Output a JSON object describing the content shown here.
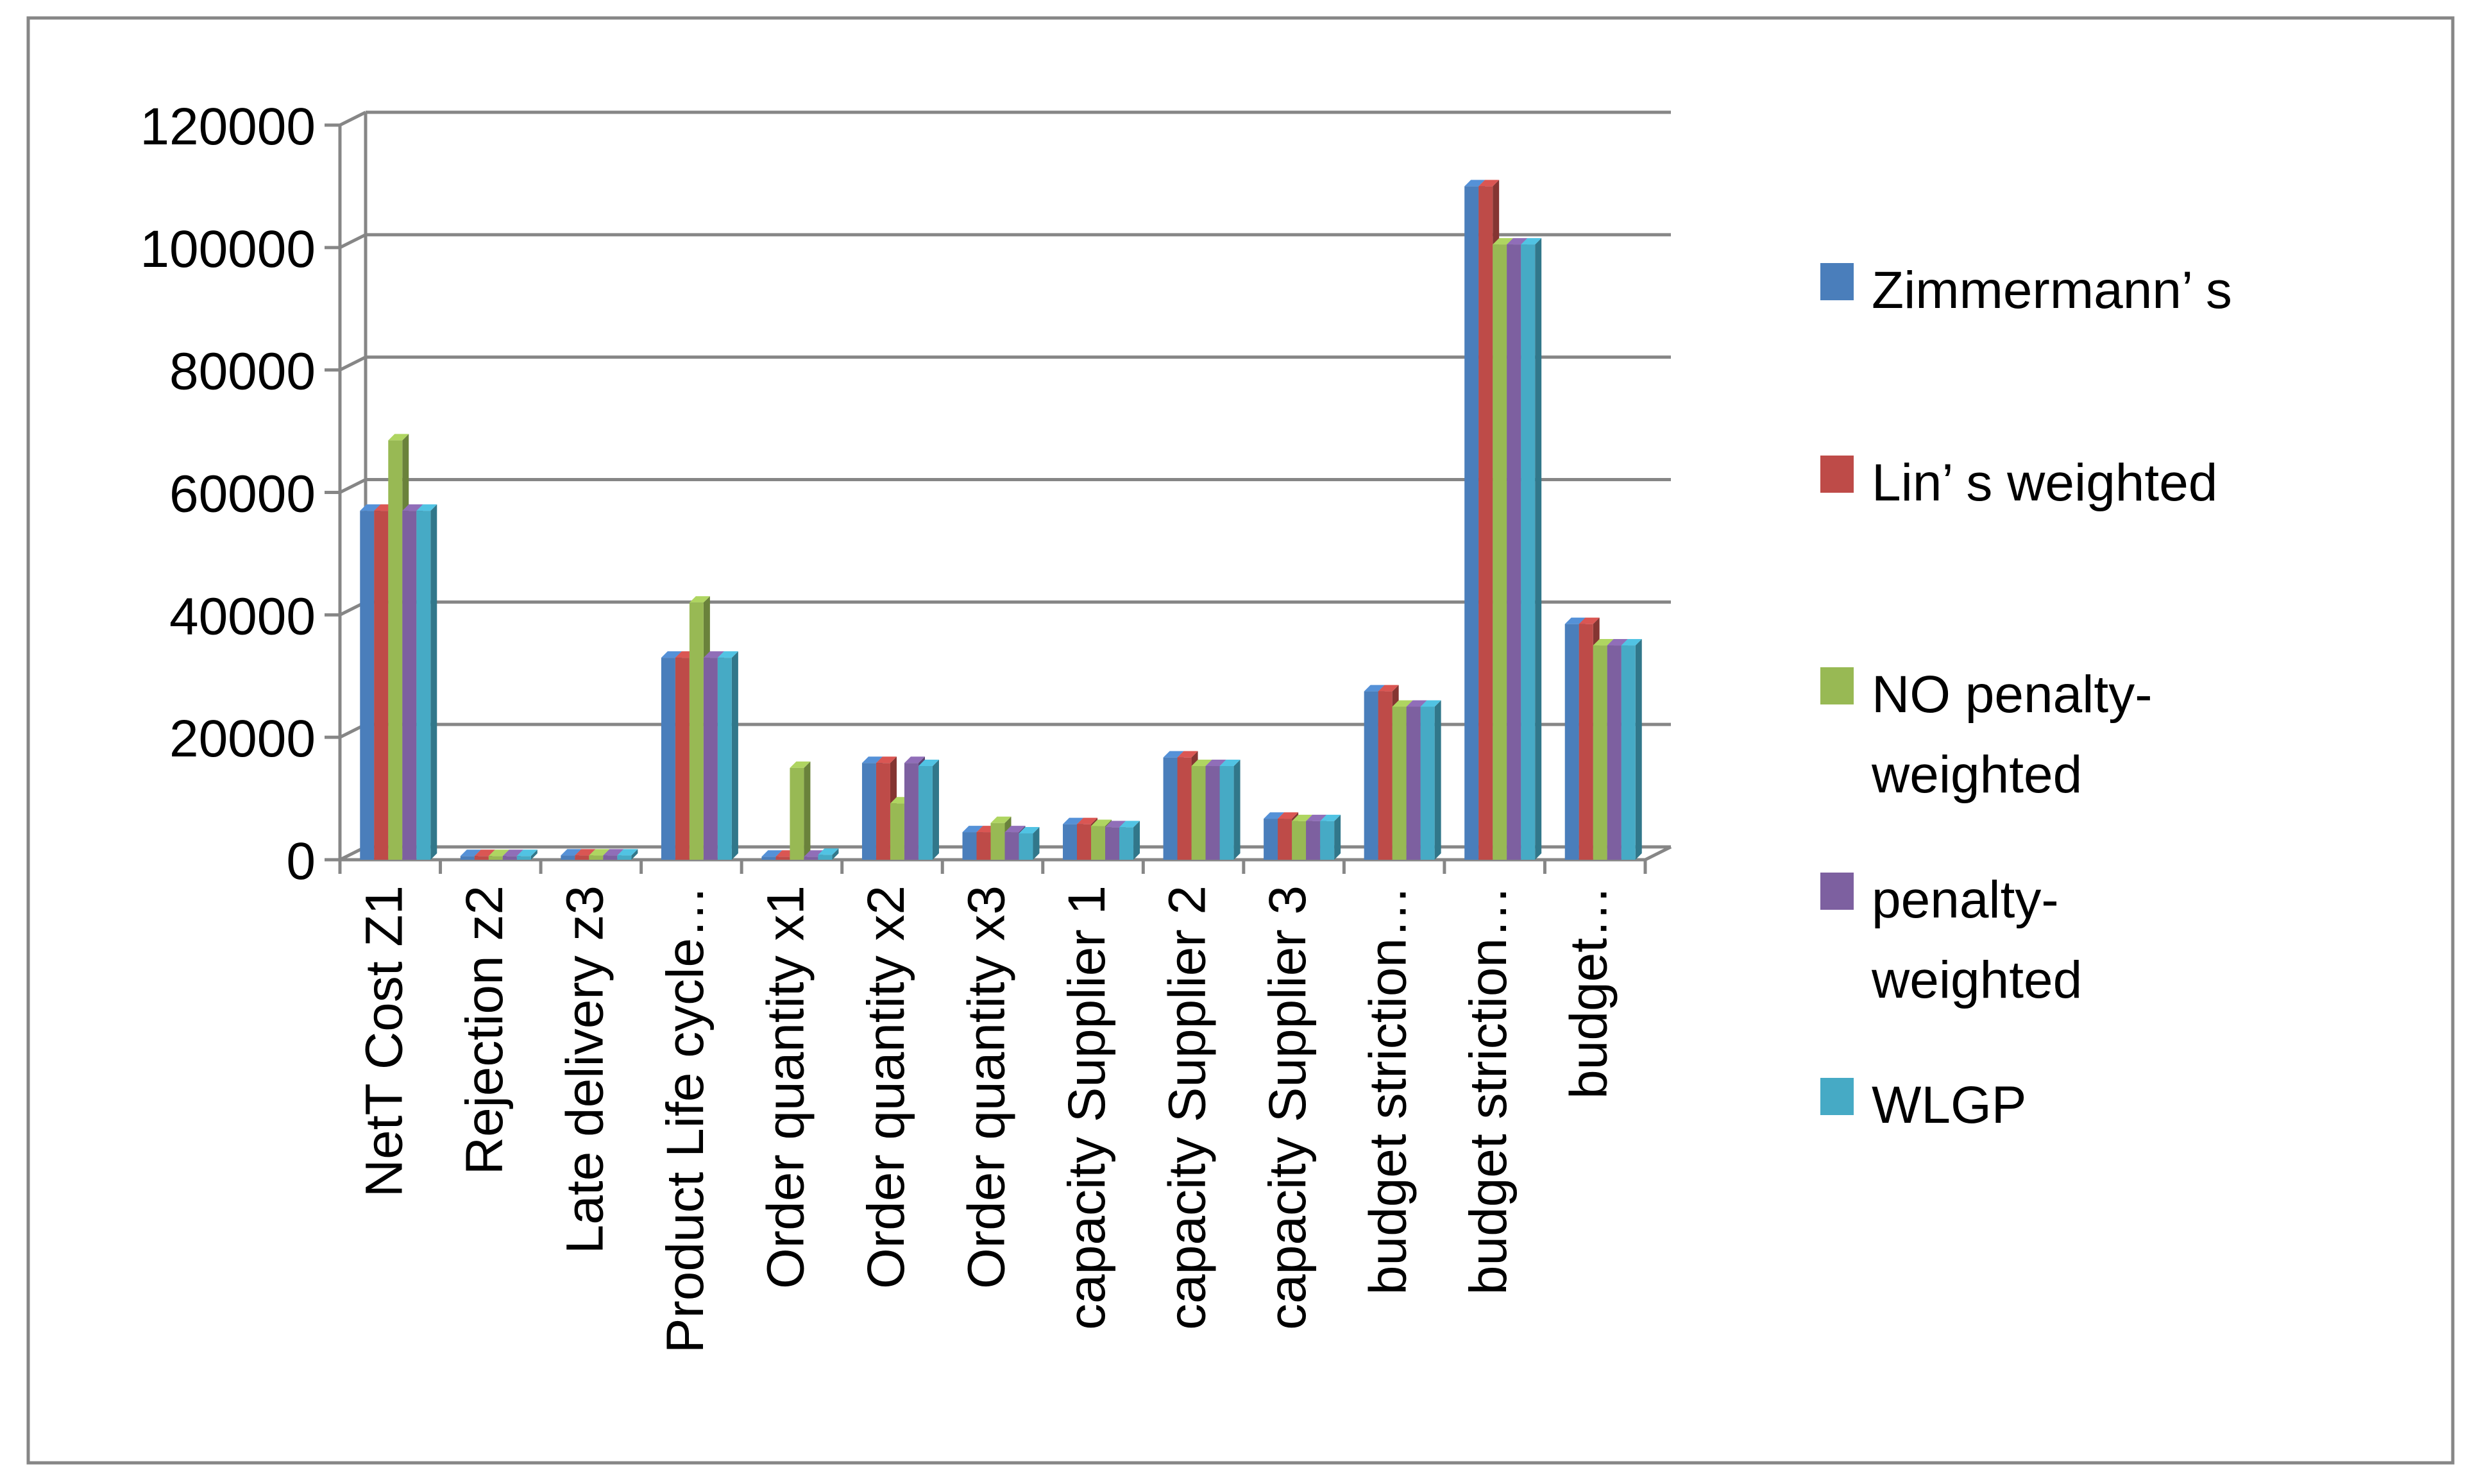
{
  "chart_data": {
    "type": "bar",
    "title": "",
    "xlabel": "",
    "ylabel": "",
    "ylim": [
      0,
      120000
    ],
    "yticks": [
      "0",
      "20000",
      "40000",
      "60000",
      "80000",
      "100000",
      "120000"
    ],
    "grid": true,
    "legend_position": "right",
    "categories": [
      "NetT Cost Z1",
      "Rejection z2",
      "Late delivery z3",
      "Product Life cycle…",
      "Order quantity  x1",
      "Order quantity  x2",
      "Order quantity  x3",
      "capacity Supplier 1",
      "capacity Supplier 2",
      "capacity Supplier 3",
      "budget striction…",
      "budget striction…",
      "budget…"
    ],
    "series": [
      {
        "name": "Zimmermann’ s",
        "color": "#4a7ebb",
        "values": [
          57000,
          600,
          700,
          33000,
          500,
          15800,
          4500,
          5800,
          16700,
          6700,
          27500,
          110000,
          38500
        ]
      },
      {
        "name": "Lin’ s     weighted",
        "color": "#be4b48",
        "values": [
          57000,
          600,
          700,
          33000,
          500,
          15800,
          4500,
          5800,
          16700,
          6700,
          27500,
          110000,
          38500
        ]
      },
      {
        "name": "NO penalty-weighted",
        "color": "#98b954",
        "values": [
          68500,
          600,
          700,
          42000,
          15000,
          9200,
          6000,
          5500,
          15300,
          6300,
          25000,
          100500,
          35000
        ]
      },
      {
        "name": "penalty-weighted",
        "color": "#7d60a0",
        "values": [
          57000,
          600,
          700,
          33000,
          500,
          15800,
          4500,
          5300,
          15300,
          6300,
          25000,
          100500,
          35000
        ]
      },
      {
        "name": "WLGP",
        "color": "#46aac5",
        "values": [
          57000,
          600,
          700,
          33000,
          800,
          15300,
          4300,
          5300,
          15300,
          6300,
          25000,
          100500,
          35000
        ]
      }
    ],
    "legend_labels": [
      [
        "Zimmermann’ s"
      ],
      [
        "Lin’ s     weighted"
      ],
      [
        "NO penalty-",
        "weighted"
      ],
      [
        "penalty-",
        "weighted"
      ],
      [
        "WLGP"
      ]
    ]
  }
}
